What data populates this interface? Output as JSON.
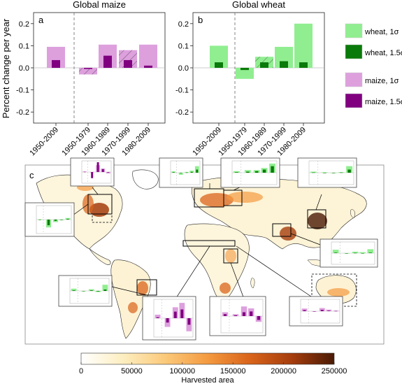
{
  "figure": {
    "ylabel": "Percent change per year",
    "colorbar": {
      "label": "Harvested area",
      "ticks": [
        "0",
        "50000",
        "100000",
        "150000",
        "200000",
        "250000"
      ],
      "min": 0,
      "max": 250000,
      "colors": [
        "#ffffff",
        "#fdeec0",
        "#fbc97a",
        "#f49a40",
        "#d9641b",
        "#a53d0d",
        "#4a1a05"
      ]
    },
    "legend": [
      {
        "label": "wheat, 1σ",
        "color": "#90ee90"
      },
      {
        "label": "wheat, 1.5σ",
        "color": "#0a7a0a"
      },
      {
        "label": "maize, 1σ",
        "color": "#dda0dd"
      },
      {
        "label": "maize, 1.5σ",
        "color": "#800080"
      }
    ],
    "map_panel_letter": "c"
  },
  "chart_data": [
    {
      "type": "bar",
      "panel": "a",
      "title": "Global maize",
      "ylabel": "Percent change per year",
      "ylim": [
        -0.25,
        0.25
      ],
      "yticks": [
        "-0.2",
        "-0.1",
        "0.0",
        "0.1",
        "0.2"
      ],
      "categories": [
        "1950-2009",
        "1950-1979",
        "1960-1989",
        "1970-1999",
        "1980-2009"
      ],
      "series": [
        {
          "name": "maize, 1σ",
          "color": "#dda0dd",
          "values": [
            0.095,
            -0.03,
            0.105,
            0.08,
            0.105
          ]
        },
        {
          "name": "maize, 1.5σ",
          "color": "#800080",
          "values": [
            0.035,
            -0.005,
            0.055,
            0.035,
            0.01
          ]
        }
      ],
      "hatched": [
        false,
        true,
        false,
        true,
        false
      ]
    },
    {
      "type": "bar",
      "panel": "b",
      "title": "Global wheat",
      "ylim": [
        -0.25,
        0.25
      ],
      "yticks": [
        "-0.2",
        "-0.1",
        "0.0",
        "0.1",
        "0.2"
      ],
      "categories": [
        "1950-2009",
        "1950-1979",
        "1960-1989",
        "1970-1999",
        "1980-2009"
      ],
      "series": [
        {
          "name": "wheat, 1σ",
          "color": "#90ee90",
          "values": [
            0.1,
            -0.05,
            0.05,
            0.095,
            0.2
          ]
        },
        {
          "name": "wheat, 1.5σ",
          "color": "#0a7a0a",
          "values": [
            0.025,
            -0.01,
            0.025,
            0.03,
            0.025
          ]
        }
      ],
      "hatched": [
        false,
        false,
        true,
        false,
        false
      ]
    }
  ]
}
